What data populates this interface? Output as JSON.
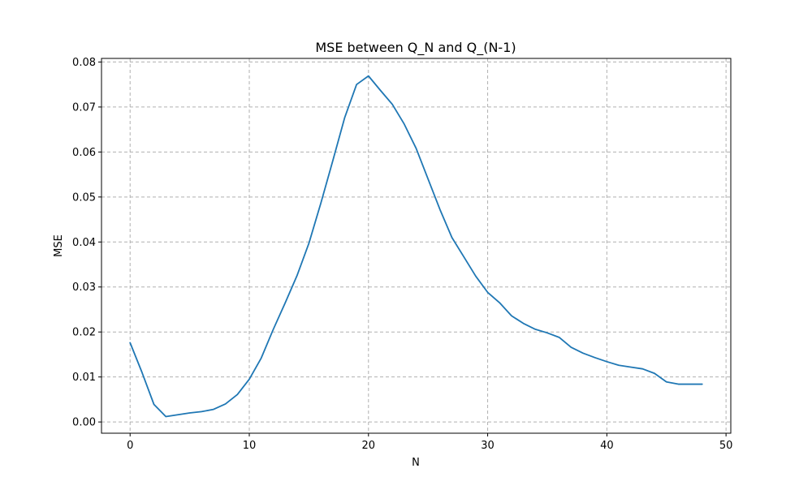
{
  "chart_data": {
    "type": "line",
    "title": "MSE between Q_N and Q_(N-1)",
    "xlabel": "N",
    "ylabel": "MSE",
    "xlim": [
      -2.4,
      50.4
    ],
    "ylim": [
      -0.0025,
      0.0808
    ],
    "xticks": [
      0,
      10,
      20,
      30,
      40,
      50
    ],
    "yticks": [
      0.0,
      0.01,
      0.02,
      0.03,
      0.04,
      0.05,
      0.06,
      0.07,
      0.08
    ],
    "xtick_labels": [
      "0",
      "10",
      "20",
      "30",
      "40",
      "50"
    ],
    "ytick_labels": [
      "0.00",
      "0.01",
      "0.02",
      "0.03",
      "0.04",
      "0.05",
      "0.06",
      "0.07",
      "0.08"
    ],
    "grid": true,
    "legend": "none",
    "series": [
      {
        "color": "#1f77b4",
        "x": [
          0,
          1,
          2,
          3,
          4,
          5,
          6,
          7,
          8,
          9,
          10,
          11,
          12,
          13,
          14,
          15,
          16,
          17,
          18,
          19,
          20,
          21,
          22,
          23,
          24,
          25,
          26,
          27,
          28,
          29,
          30,
          31,
          32,
          33,
          34,
          35,
          36,
          37,
          38,
          39,
          40,
          41,
          42,
          43,
          44,
          45,
          46,
          47,
          48
        ],
        "y": [
          0.0176,
          0.011,
          0.0039,
          0.0012,
          0.0016,
          0.002,
          0.0023,
          0.0028,
          0.004,
          0.0061,
          0.0095,
          0.0142,
          0.0205,
          0.0264,
          0.0325,
          0.0397,
          0.0486,
          0.058,
          0.0676,
          0.075,
          0.0769,
          0.0737,
          0.0706,
          0.0662,
          0.0608,
          0.054,
          0.0472,
          0.041,
          0.0367,
          0.0324,
          0.0288,
          0.0265,
          0.0236,
          0.0219,
          0.0206,
          0.0198,
          0.0188,
          0.0166,
          0.0153,
          0.0143,
          0.0134,
          0.0126,
          0.0122,
          0.0118,
          0.0108,
          0.0089,
          0.0084,
          0.0084,
          0.0084
        ]
      }
    ]
  },
  "colors": {
    "line": "#1f77b4",
    "grid": "#b0b0b0",
    "axes": "#000000",
    "background": "#ffffff"
  }
}
